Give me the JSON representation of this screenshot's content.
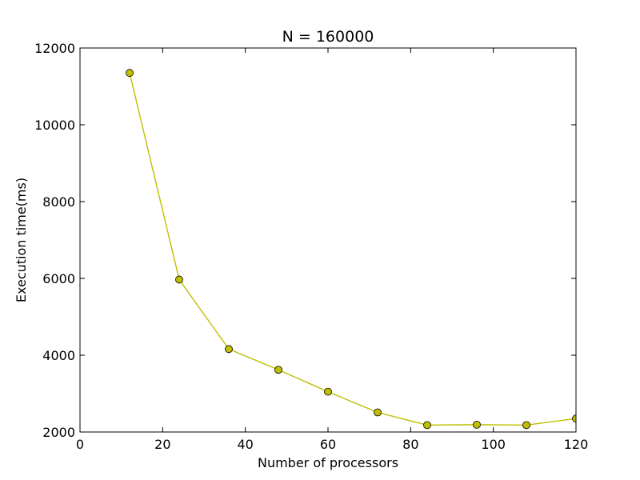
{
  "chart_data": {
    "type": "line",
    "title": "N = 160000",
    "xlabel": "Number of processors",
    "ylabel": "Execution time(ms)",
    "xlim": [
      0,
      120
    ],
    "ylim": [
      2000,
      12000
    ],
    "xticks": [
      0,
      20,
      40,
      60,
      80,
      100,
      120
    ],
    "yticks": [
      2000,
      4000,
      6000,
      8000,
      10000,
      12000
    ],
    "grid": false,
    "series": [
      {
        "color": "#bfbf00",
        "marker": "circle",
        "x": [
          12,
          24,
          36,
          48,
          60,
          72,
          84,
          96,
          108,
          120
        ],
        "y": [
          11350,
          5970,
          4160,
          3620,
          3050,
          2510,
          2180,
          2190,
          2180,
          2350
        ]
      }
    ]
  }
}
